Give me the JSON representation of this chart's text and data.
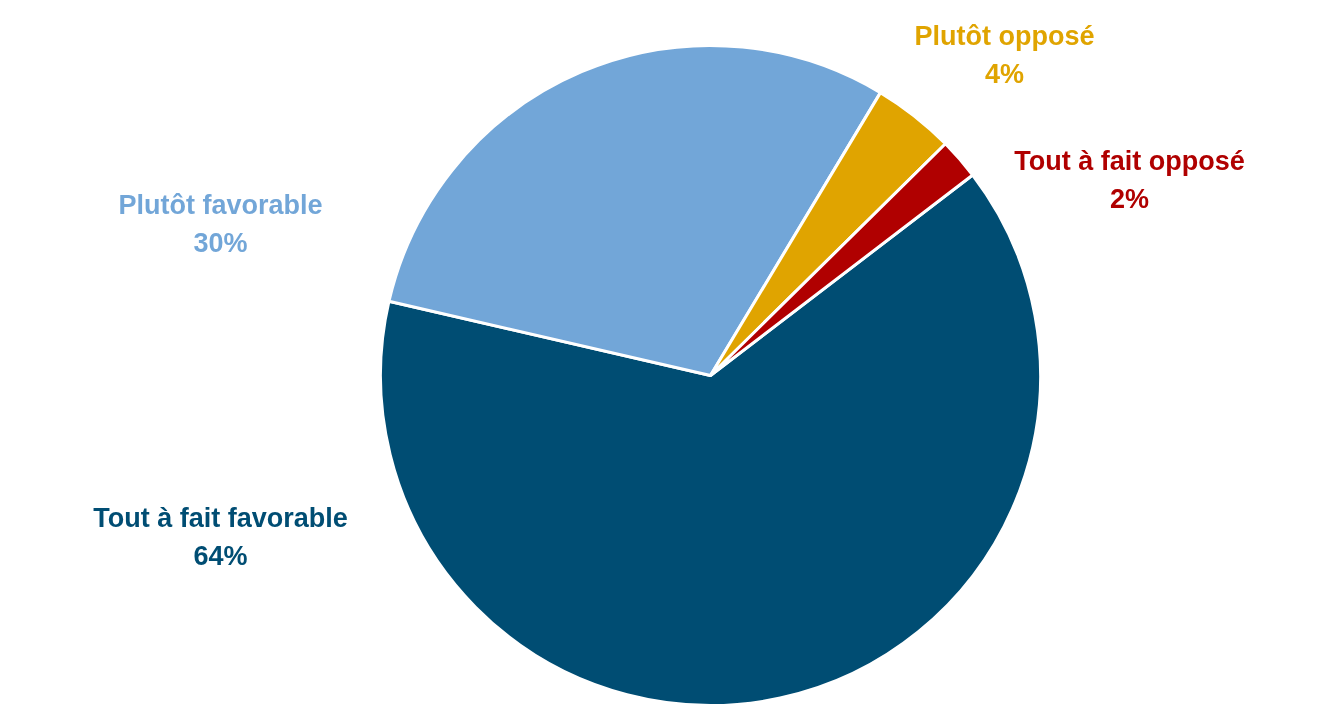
{
  "chart_data": {
    "type": "pie",
    "categories": [
      "Tout à fait favorable",
      "Plutôt favorable",
      "Plutôt opposé",
      "Tout à fait opposé"
    ],
    "values": [
      64,
      30,
      4,
      2
    ],
    "colors": [
      "#004d73",
      "#72a6d8",
      "#e0a400",
      "#b00000"
    ],
    "value_labels": [
      "64%",
      "30%",
      "4%",
      "2%"
    ]
  }
}
